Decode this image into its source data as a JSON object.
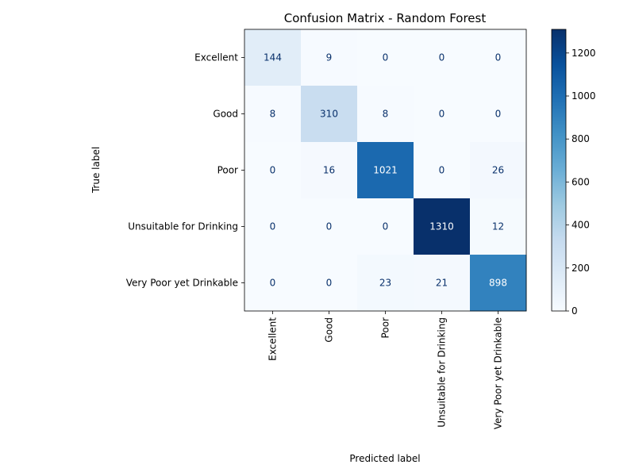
{
  "chart_data": {
    "type": "heatmap",
    "title": "Confusion Matrix - Random Forest",
    "xlabel": "Predicted label",
    "ylabel": "True label",
    "x_categories": [
      "Excellent",
      "Good",
      "Poor",
      "Unsuitable for Drinking",
      "Very Poor yet Drinkable"
    ],
    "y_categories": [
      "Excellent",
      "Good",
      "Poor",
      "Unsuitable for Drinking",
      "Very Poor yet Drinkable"
    ],
    "values": [
      [
        144,
        9,
        0,
        0,
        0
      ],
      [
        8,
        310,
        8,
        0,
        0
      ],
      [
        0,
        16,
        1021,
        0,
        26
      ],
      [
        0,
        0,
        0,
        1310,
        12
      ],
      [
        0,
        0,
        23,
        21,
        898
      ]
    ],
    "colormap": "Blues",
    "colorbar": {
      "range": [
        0,
        1310
      ],
      "ticks": [
        0,
        200,
        400,
        600,
        800,
        1000,
        1200
      ]
    },
    "grid": false
  }
}
